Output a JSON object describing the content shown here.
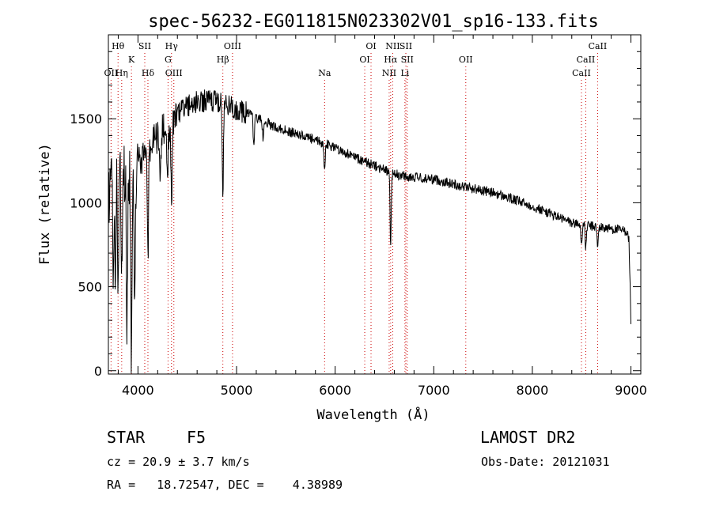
{
  "chart_data": {
    "type": "line",
    "title": "spec-56232-EG011815N023302V01_sp16-133.fits",
    "xlabel": "Wavelength (Å)",
    "ylabel": "Flux (relative)",
    "xlim": [
      3700,
      9100
    ],
    "ylim": [
      -20,
      2000
    ],
    "x_ticks": [
      4000,
      5000,
      6000,
      7000,
      8000,
      9000
    ],
    "y_ticks": [
      0,
      500,
      1000,
      1500
    ],
    "grid": false,
    "line_color": "#000000",
    "marker_color": "#cc0000",
    "continuum": {
      "wavelength": [
        3700,
        3750,
        3800,
        3850,
        3900,
        3950,
        4000,
        4050,
        4100,
        4150,
        4200,
        4250,
        4300,
        4400,
        4500,
        4600,
        4700,
        4800,
        4900,
        5000,
        5200,
        5400,
        5600,
        5800,
        6000,
        6200,
        6400,
        6600,
        6800,
        7000,
        7200,
        7400,
        7600,
        7800,
        8000,
        8200,
        8400,
        8600,
        8800,
        8960,
        8980,
        9000
      ],
      "flux": [
        1000,
        1150,
        1250,
        1200,
        1150,
        1150,
        1200,
        1300,
        1350,
        1350,
        1400,
        1420,
        1450,
        1520,
        1580,
        1600,
        1610,
        1600,
        1580,
        1560,
        1510,
        1450,
        1410,
        1370,
        1330,
        1270,
        1220,
        1170,
        1150,
        1140,
        1110,
        1085,
        1060,
        1020,
        980,
        930,
        880,
        860,
        845,
        830,
        780,
        300
      ]
    },
    "absorption_features": [
      {
        "wavelength": 3750,
        "depth": 500
      },
      {
        "wavelength": 3770,
        "depth": 600
      },
      {
        "wavelength": 3798,
        "depth": 800
      },
      {
        "wavelength": 3835,
        "depth": 700
      },
      {
        "wavelength": 3889,
        "depth": 900
      },
      {
        "wavelength": 3934,
        "depth": 1050
      },
      {
        "wavelength": 3968,
        "depth": 800
      },
      {
        "wavelength": 4101,
        "depth": 650
      },
      {
        "wavelength": 4226,
        "depth": 300
      },
      {
        "wavelength": 4300,
        "depth": 350
      },
      {
        "wavelength": 4340,
        "depth": 450
      },
      {
        "wavelength": 4861,
        "depth": 520
      },
      {
        "wavelength": 5175,
        "depth": 200
      },
      {
        "wavelength": 5270,
        "depth": 120
      },
      {
        "wavelength": 5893,
        "depth": 160
      },
      {
        "wavelength": 6563,
        "depth": 420
      },
      {
        "wavelength": 8498,
        "depth": 120
      },
      {
        "wavelength": 8542,
        "depth": 140
      },
      {
        "wavelength": 8662,
        "depth": 130
      }
    ],
    "line_markers": [
      {
        "label": "Hθ",
        "wavelength": 3798,
        "row": 0
      },
      {
        "label": "K",
        "wavelength": 3934,
        "row": 1
      },
      {
        "label": "SII",
        "wavelength": 4069,
        "row": 0
      },
      {
        "label": "Hγ",
        "wavelength": 4340,
        "row": 0
      },
      {
        "label": "G",
        "wavelength": 4305,
        "row": 1
      },
      {
        "label": "OIII",
        "wavelength": 4364,
        "row": 2
      },
      {
        "label": "OII",
        "wavelength": 3727,
        "row": 2
      },
      {
        "label": "Hη",
        "wavelength": 3835,
        "row": 2
      },
      {
        "label": "Hδ",
        "wavelength": 4101,
        "row": 2
      },
      {
        "label": "OIII",
        "wavelength": 4959,
        "row": 0
      },
      {
        "label": "Hβ",
        "wavelength": 4861,
        "row": 1
      },
      {
        "label": "Na",
        "wavelength": 5893,
        "row": 2
      },
      {
        "label": "OI",
        "wavelength": 6364,
        "row": 0
      },
      {
        "label": "OI",
        "wavelength": 6300,
        "row": 1
      },
      {
        "label": "NII",
        "wavelength": 6584,
        "row": 0
      },
      {
        "label": "SII",
        "wavelength": 6717,
        "row": 0
      },
      {
        "label": "Hα",
        "wavelength": 6563,
        "row": 1
      },
      {
        "label": "SII",
        "wavelength": 6731,
        "row": 1
      },
      {
        "label": "NII",
        "wavelength": 6548,
        "row": 2
      },
      {
        "label": "Li",
        "wavelength": 6708,
        "row": 2
      },
      {
        "label": "OII",
        "wavelength": 7325,
        "row": 1
      },
      {
        "label": "CaII",
        "wavelength": 8662,
        "row": 0
      },
      {
        "label": "CaII",
        "wavelength": 8542,
        "row": 1
      },
      {
        "label": "CaII",
        "wavelength": 8498,
        "row": 2
      }
    ]
  },
  "info": {
    "object_class": "STAR",
    "subclass": "F5",
    "survey": "LAMOST DR2",
    "redshift": "cz = 20.9 ± 3.7 km/s",
    "obs_date": "Obs-Date: 20121031",
    "coordinates": "RA =   18.72547, DEC =    4.38989"
  }
}
